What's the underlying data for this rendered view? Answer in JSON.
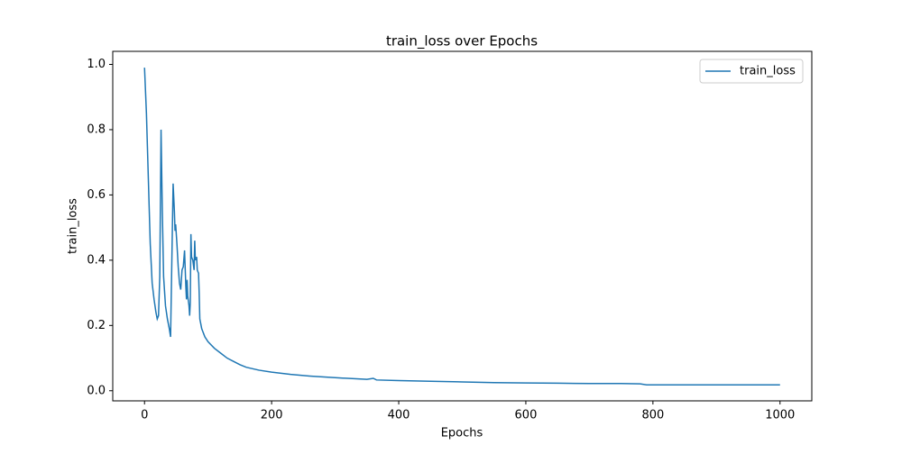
{
  "chart_data": {
    "type": "line",
    "title": "train_loss over Epochs",
    "xlabel": "Epochs",
    "ylabel": "train_loss",
    "x": [
      0,
      3,
      6,
      9,
      12,
      15,
      18,
      20,
      22,
      24,
      26,
      28,
      30,
      33,
      36,
      39,
      41,
      43,
      45,
      47,
      48,
      49,
      51,
      53,
      55,
      57,
      59,
      61,
      63,
      65,
      66,
      67,
      68,
      70,
      71,
      72,
      73,
      74,
      76,
      78,
      79,
      80,
      82,
      83,
      85,
      86,
      87,
      90,
      95,
      100,
      110,
      120,
      130,
      140,
      150,
      160,
      180,
      200,
      230,
      260,
      300,
      350,
      360,
      365,
      400,
      450,
      500,
      550,
      600,
      650,
      700,
      750,
      780,
      790,
      850,
      900,
      1000
    ],
    "series": [
      {
        "name": "train_loss",
        "color": "#1f77b4",
        "values": [
          0.99,
          0.85,
          0.65,
          0.45,
          0.33,
          0.28,
          0.24,
          0.22,
          0.23,
          0.35,
          0.8,
          0.55,
          0.35,
          0.26,
          0.22,
          0.19,
          0.165,
          0.4,
          0.635,
          0.55,
          0.49,
          0.51,
          0.45,
          0.38,
          0.33,
          0.31,
          0.37,
          0.38,
          0.43,
          0.32,
          0.28,
          0.34,
          0.29,
          0.26,
          0.23,
          0.27,
          0.48,
          0.41,
          0.4,
          0.37,
          0.46,
          0.4,
          0.41,
          0.37,
          0.36,
          0.3,
          0.22,
          0.19,
          0.165,
          0.15,
          0.13,
          0.115,
          0.1,
          0.09,
          0.08,
          0.072,
          0.063,
          0.057,
          0.05,
          0.045,
          0.04,
          0.035,
          0.038,
          0.033,
          0.031,
          0.029,
          0.027,
          0.025,
          0.024,
          0.023,
          0.022,
          0.022,
          0.021,
          0.018,
          0.018,
          0.018,
          0.018
        ]
      }
    ],
    "xlim": [
      -50,
      1050
    ],
    "ylim": [
      -0.031,
      1.04
    ],
    "xticks": [
      0,
      200,
      400,
      600,
      800,
      1000
    ],
    "yticks": [
      {
        "value": 0,
        "label": "0.0"
      },
      0.2,
      0.4,
      0.6,
      0.8,
      {
        "value": 1,
        "label": "1.0"
      }
    ],
    "legend": "upper right"
  }
}
